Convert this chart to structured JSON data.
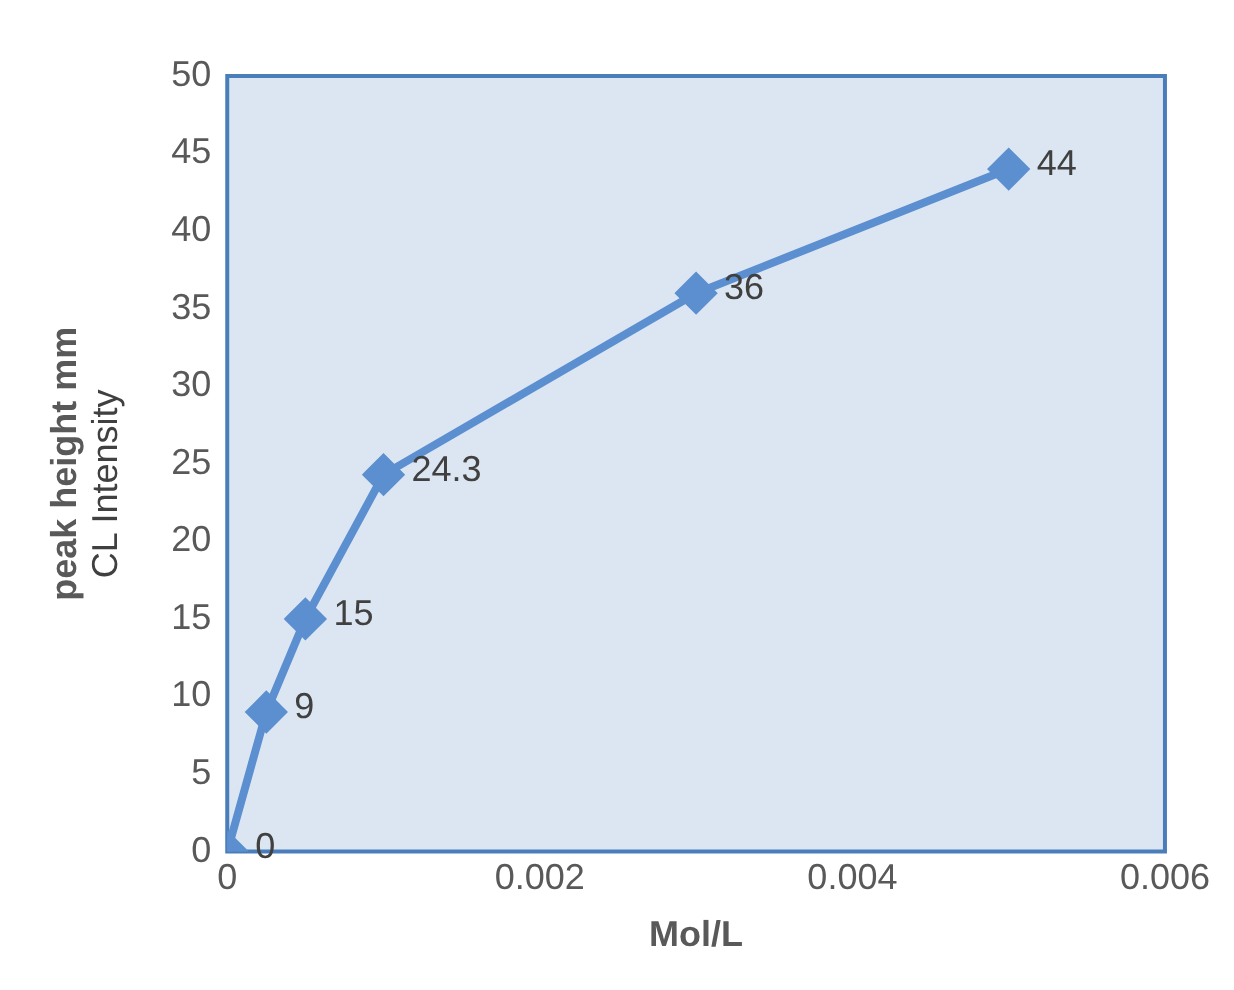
{
  "chart_data": {
    "type": "line",
    "xlabel": "Mol/L",
    "ylabel": "peak height mm",
    "annotations": [
      "CL Intensity"
    ],
    "x": [
      0,
      0.00025,
      0.0005,
      0.001,
      0.003,
      0.005
    ],
    "series": [
      {
        "color": "#5b8fd0",
        "values": [
          0,
          9,
          15,
          24.3,
          36,
          44
        ]
      }
    ],
    "xlim": [
      0,
      0.006
    ],
    "xticks": [
      0,
      0.002,
      0.004,
      0.006
    ],
    "ylim": [
      0,
      50
    ],
    "yticks": [
      0,
      5,
      10,
      15,
      20,
      25,
      30,
      35,
      40,
      45,
      50
    ],
    "legend": false,
    "marker": "diamond",
    "line_style": "solid",
    "data_labels": true
  }
}
